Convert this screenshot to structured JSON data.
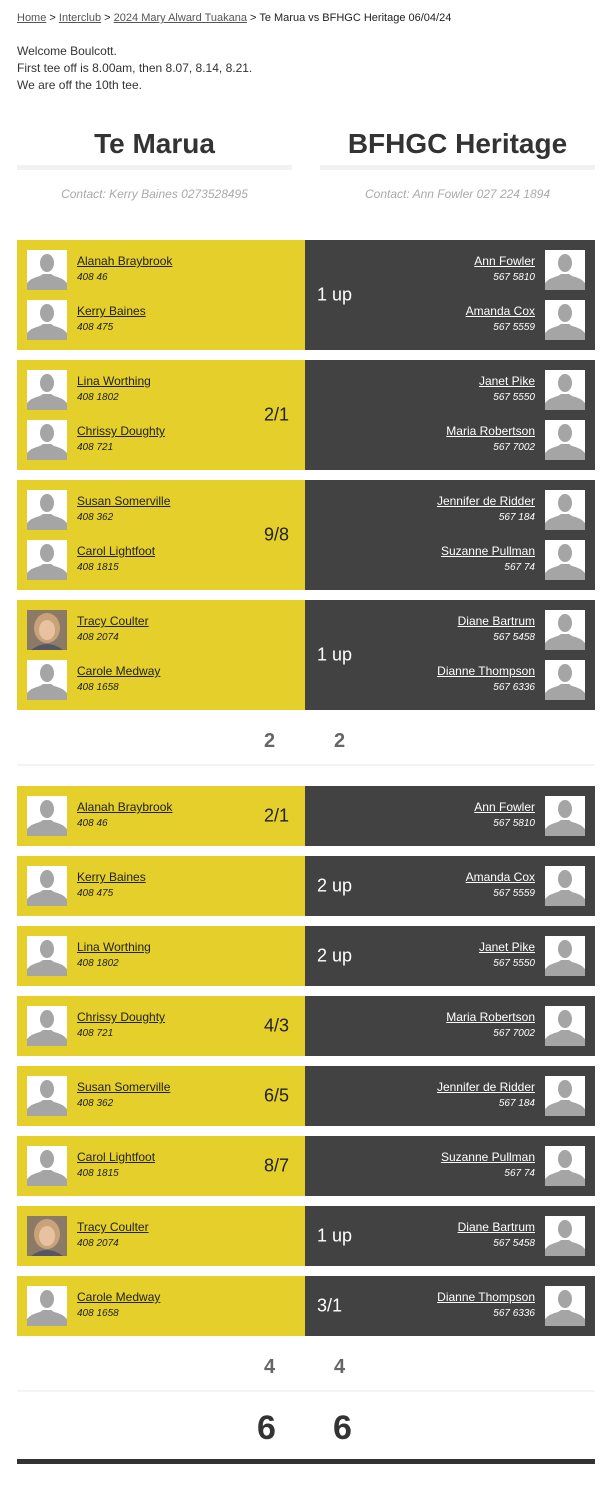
{
  "breadcrumb": {
    "items": [
      "Home",
      "Interclub",
      "2024 Mary Alward Tuakana"
    ],
    "current": "Te Marua vs BFHGC Heritage 06/04/24",
    "separator": ">"
  },
  "intro": [
    "Welcome Boulcott.",
    "First tee off is 8.00am, then 8.07, 8.14, 8.21.",
    "We are off the 10th tee."
  ],
  "teams": {
    "home": {
      "name": "Te Marua",
      "contact": "Contact: Kerry Baines 0273528495"
    },
    "away": {
      "name": "BFHGC Heritage",
      "contact": "Contact: Ann Fowler 027 224 1894"
    }
  },
  "colors": {
    "home": "#e5cf2a",
    "away": "#424242"
  },
  "foursomes": [
    {
      "home": [
        {
          "name": "Alanah Braybrook",
          "hcp": "408 46"
        },
        {
          "name": "Kerry Baines",
          "hcp": "408 475"
        }
      ],
      "away": [
        {
          "name": "Ann Fowler",
          "hcp": "567 5810"
        },
        {
          "name": "Amanda Cox",
          "hcp": "567 5559"
        }
      ],
      "result": "1 up",
      "winner": "away"
    },
    {
      "home": [
        {
          "name": "Lina Worthing",
          "hcp": "408 1802"
        },
        {
          "name": "Chrissy Doughty",
          "hcp": "408 721"
        }
      ],
      "away": [
        {
          "name": "Janet Pike",
          "hcp": "567 5550"
        },
        {
          "name": "Maria Robertson",
          "hcp": "567 7002"
        }
      ],
      "result": "2/1",
      "winner": "home"
    },
    {
      "home": [
        {
          "name": "Susan Somerville",
          "hcp": "408 362"
        },
        {
          "name": "Carol Lightfoot",
          "hcp": "408 1815"
        }
      ],
      "away": [
        {
          "name": "Jennifer de Ridder",
          "hcp": "567 184"
        },
        {
          "name": "Suzanne Pullman",
          "hcp": "567 74"
        }
      ],
      "result": "9/8",
      "winner": "home"
    },
    {
      "home": [
        {
          "name": "Tracy Coulter",
          "hcp": "408 2074",
          "photo": true
        },
        {
          "name": "Carole Medway",
          "hcp": "408 1658"
        }
      ],
      "away": [
        {
          "name": "Diane Bartrum",
          "hcp": "567 5458"
        },
        {
          "name": "Dianne Thompson",
          "hcp": "567 6336"
        }
      ],
      "result": "1 up",
      "winner": "away"
    }
  ],
  "foursomes_total": {
    "home": "2",
    "away": "2"
  },
  "singles": [
    {
      "home": {
        "name": "Alanah Braybrook",
        "hcp": "408 46"
      },
      "away": {
        "name": "Ann Fowler",
        "hcp": "567 5810"
      },
      "result": "2/1",
      "winner": "home"
    },
    {
      "home": {
        "name": "Kerry Baines",
        "hcp": "408 475"
      },
      "away": {
        "name": "Amanda Cox",
        "hcp": "567 5559"
      },
      "result": "2 up",
      "winner": "away"
    },
    {
      "home": {
        "name": "Lina Worthing",
        "hcp": "408 1802"
      },
      "away": {
        "name": "Janet Pike",
        "hcp": "567 5550"
      },
      "result": "2 up",
      "winner": "away"
    },
    {
      "home": {
        "name": "Chrissy Doughty",
        "hcp": "408 721"
      },
      "away": {
        "name": "Maria Robertson",
        "hcp": "567 7002"
      },
      "result": "4/3",
      "winner": "home"
    },
    {
      "home": {
        "name": "Susan Somerville",
        "hcp": "408 362"
      },
      "away": {
        "name": "Jennifer de Ridder",
        "hcp": "567 184"
      },
      "result": "6/5",
      "winner": "home"
    },
    {
      "home": {
        "name": "Carol Lightfoot",
        "hcp": "408 1815"
      },
      "away": {
        "name": "Suzanne Pullman",
        "hcp": "567 74"
      },
      "result": "8/7",
      "winner": "home"
    },
    {
      "home": {
        "name": "Tracy Coulter",
        "hcp": "408 2074",
        "photo": true
      },
      "away": {
        "name": "Diane Bartrum",
        "hcp": "567 5458"
      },
      "result": "1 up",
      "winner": "away"
    },
    {
      "home": {
        "name": "Carole Medway",
        "hcp": "408 1658"
      },
      "away": {
        "name": "Dianne Thompson",
        "hcp": "567 6336"
      },
      "result": "3/1",
      "winner": "away"
    }
  ],
  "singles_total": {
    "home": "4",
    "away": "4"
  },
  "grand_total": {
    "home": "6",
    "away": "6"
  }
}
